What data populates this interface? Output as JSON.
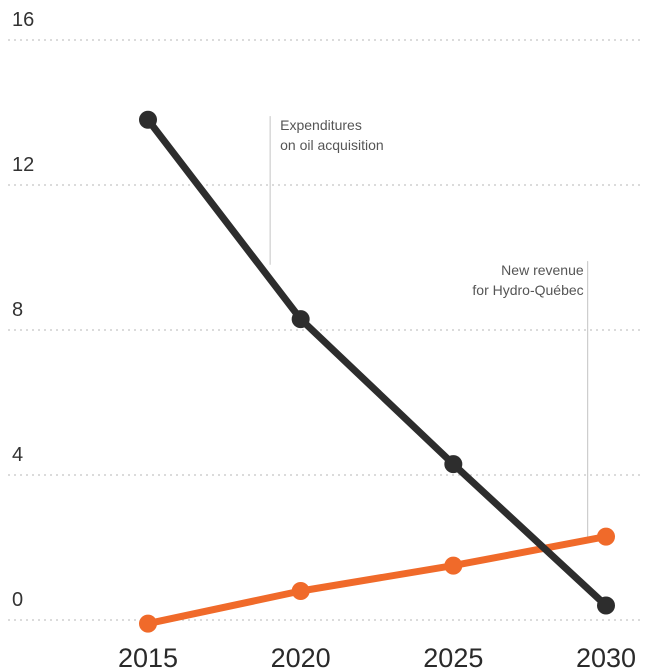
{
  "chart_data": {
    "type": "line",
    "title": "",
    "xlabel": "",
    "ylabel": "",
    "x": [
      2015,
      2020,
      2025,
      2030
    ],
    "xticks": [
      "2015",
      "2020",
      "2025",
      "2030"
    ],
    "yticks": [
      "0",
      "4",
      "8",
      "12",
      "16"
    ],
    "ylim": [
      0,
      16
    ],
    "xlim": [
      2015,
      2030
    ],
    "grid": "horizontal-dotted",
    "series": [
      {
        "values": [
          13.8,
          8.3,
          4.3,
          0.4
        ],
        "color": "#2d2d2d"
      },
      {
        "values": [
          -0.1,
          0.8,
          1.5,
          2.3
        ],
        "color": "#f06a2a"
      }
    ],
    "annotations": [
      {
        "lines": [
          "Expenditures",
          "on oil acquisition"
        ],
        "x": 2019,
        "y_top": 13.9,
        "y_bottom": 9.8,
        "align": "start"
      },
      {
        "lines": [
          "New revenue",
          "for Hydro-Québec"
        ],
        "x": 2029.4,
        "y_top": 9.9,
        "y_bottom": 2.3,
        "align": "end"
      }
    ]
  }
}
